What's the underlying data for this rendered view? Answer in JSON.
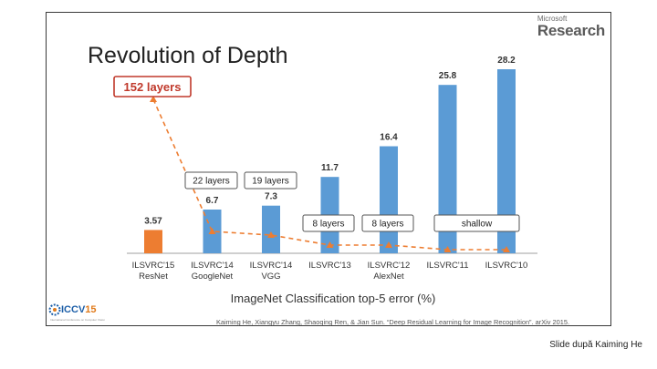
{
  "slide": {
    "title": "Revolution of Depth",
    "brand_small": "Microsoft",
    "brand_big": "Research",
    "citation": "Kaiming He, Xiangyu Zhang, Shaoqing Ren, & Jian Sun. “Deep Residual Learning for Image Recognition”. arXiv 2015.",
    "logo_text": "ICCV",
    "logo_year": "15",
    "logo_sub": "International Conference on Computer Vision"
  },
  "footer": {
    "credit": "Slide după Kaiming He"
  },
  "colors": {
    "bar_default": "#5b9bd5",
    "bar_highlight": "#ed7d31",
    "trend_line": "#ed7d31",
    "callout_highlight": "#c0392b",
    "axis": "#bfbfbf"
  },
  "chart_data": {
    "type": "bar",
    "xlabel": "ImageNet Classification top-5 error (%)",
    "ylabel": "",
    "ylim": [
      0,
      28.2
    ],
    "categories": [
      [
        "ILSVRC'15",
        "ResNet"
      ],
      [
        "ILSVRC'14",
        "GoogleNet"
      ],
      [
        "ILSVRC'14",
        "VGG"
      ],
      [
        "ILSVRC'13",
        ""
      ],
      [
        "ILSVRC'12",
        "AlexNet"
      ],
      [
        "ILSVRC'11",
        ""
      ],
      [
        "ILSVRC'10",
        ""
      ]
    ],
    "series": [
      {
        "values": [
          3.57,
          6.7,
          7.3,
          11.7,
          16.4,
          25.8,
          28.2
        ]
      }
    ],
    "value_labels": [
      "3.57",
      "6.7",
      "7.3",
      "11.7",
      "16.4",
      "25.8",
      "28.2"
    ],
    "highlight_index": 0,
    "layers_trend": {
      "values": [
        152,
        22,
        19,
        8,
        8,
        1,
        1
      ],
      "labels": [
        "152 layers",
        "22 layers",
        "19 layers",
        "8 layers",
        "8 layers",
        "shallow",
        ""
      ]
    },
    "grid": false
  }
}
